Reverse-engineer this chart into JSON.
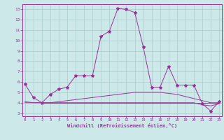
{
  "xlabel": "Windchill (Refroidissement éolien,°C)",
  "background_color": "#cce8e8",
  "grid_color": "#aacccc",
  "line_color": "#993399",
  "x_ticks": [
    0,
    1,
    2,
    3,
    4,
    5,
    6,
    7,
    8,
    9,
    10,
    11,
    12,
    13,
    14,
    15,
    16,
    17,
    18,
    19,
    20,
    21,
    22,
    23
  ],
  "y_ticks": [
    3,
    4,
    5,
    6,
    7,
    8,
    9,
    10,
    11,
    12,
    13
  ],
  "ylim": [
    2.7,
    13.5
  ],
  "xlim": [
    -0.3,
    23.3
  ],
  "line1_x": [
    0,
    1,
    2,
    3,
    4,
    5,
    6,
    7,
    8,
    9,
    10,
    11,
    12,
    13,
    14,
    15,
    16,
    17,
    18,
    19,
    20,
    21,
    22,
    23
  ],
  "line1_y": [
    5.8,
    4.5,
    4.0,
    4.8,
    5.3,
    5.5,
    6.6,
    6.6,
    6.6,
    10.4,
    10.9,
    13.1,
    13.0,
    12.7,
    9.4,
    5.5,
    5.5,
    7.5,
    5.7,
    5.7,
    5.7,
    3.9,
    3.2,
    4.1
  ],
  "line2_x": [
    0,
    1,
    2,
    3,
    4,
    5,
    6,
    7,
    8,
    9,
    10,
    11,
    12,
    13,
    14,
    15,
    16,
    17,
    18,
    19,
    20,
    21,
    22,
    23
  ],
  "line2_y": [
    4.1,
    4.0,
    4.0,
    4.0,
    4.1,
    4.2,
    4.3,
    4.4,
    4.5,
    4.6,
    4.7,
    4.8,
    4.9,
    5.0,
    5.0,
    5.0,
    5.0,
    4.9,
    4.8,
    4.6,
    4.4,
    4.2,
    4.0,
    4.0
  ],
  "line3_x": [
    0,
    1,
    2,
    3,
    4,
    5,
    6,
    7,
    8,
    9,
    10,
    11,
    12,
    13,
    14,
    15,
    16,
    17,
    18,
    19,
    20,
    21,
    22,
    23
  ],
  "line3_y": [
    4.0,
    4.0,
    4.0,
    4.0,
    4.0,
    4.0,
    4.0,
    4.0,
    4.0,
    4.0,
    4.0,
    4.0,
    4.0,
    4.0,
    4.0,
    4.0,
    4.0,
    4.0,
    4.0,
    4.0,
    4.0,
    3.8,
    3.7,
    3.9
  ],
  "line4_x": [
    2,
    3,
    4,
    5,
    6,
    7,
    8,
    9,
    10,
    11,
    12,
    13,
    14,
    15,
    16,
    17,
    18,
    19,
    20,
    21,
    22,
    23
  ],
  "line4_y": [
    4.0,
    4.0,
    4.0,
    4.0,
    4.0,
    4.0,
    4.0,
    4.0,
    4.0,
    4.0,
    4.0,
    4.0,
    4.0,
    4.0,
    4.0,
    4.0,
    4.0,
    4.0,
    4.0,
    4.0,
    4.0,
    4.0
  ]
}
